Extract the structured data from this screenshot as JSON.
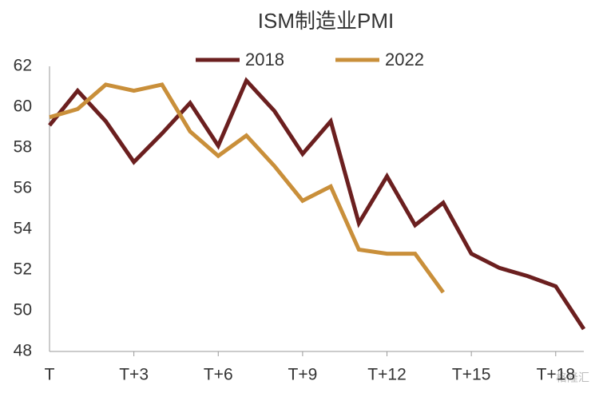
{
  "chart_data": {
    "type": "line",
    "title": "ISM制造业PMI",
    "categories": [
      "T",
      null,
      null,
      "T+3",
      null,
      null,
      "T+6",
      null,
      null,
      "T+9",
      null,
      null,
      "T+12",
      null,
      null,
      "T+15",
      null,
      null,
      "T+18",
      null
    ],
    "series": [
      {
        "name": "2018",
        "color": "#6b1f1f",
        "values": [
          59.1,
          60.8,
          59.3,
          57.3,
          58.7,
          60.2,
          58.1,
          61.3,
          59.8,
          57.7,
          59.3,
          54.3,
          56.6,
          54.2,
          55.3,
          52.8,
          52.1,
          51.7,
          51.2,
          49.1
        ]
      },
      {
        "name": "2022",
        "color": "#c98f3a",
        "values": [
          59.5,
          59.9,
          61.1,
          60.8,
          61.1,
          58.8,
          57.6,
          58.6,
          57.1,
          55.4,
          56.1,
          53.0,
          52.8,
          52.8,
          50.9,
          null,
          null,
          null,
          null,
          null
        ]
      }
    ],
    "ylim": [
      48,
      62
    ],
    "yticks": [
      48,
      50,
      52,
      54,
      56,
      58,
      60,
      62
    ],
    "grid": false,
    "legend": "top",
    "watermark": "格隆汇"
  }
}
